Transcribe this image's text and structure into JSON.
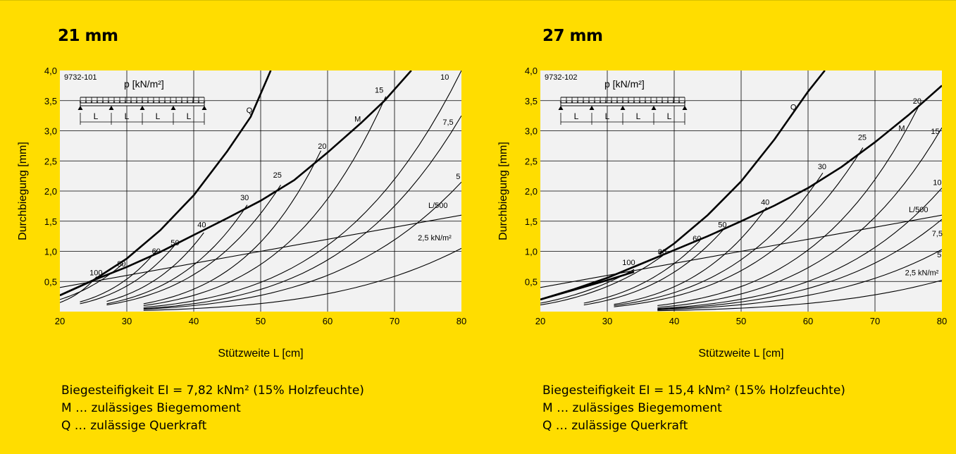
{
  "page": {
    "background": "#FFDD00"
  },
  "chart_data": [
    {
      "type": "line",
      "title": "21 mm",
      "chart_id": "9732-101",
      "xlabel": "Stützweite L [cm]",
      "ylabel": "Durchbiegung [mm]",
      "xlim": [
        20,
        80
      ],
      "ylim": [
        0,
        4.0
      ],
      "x_ticks": [
        "20",
        "30",
        "40",
        "50",
        "60",
        "70",
        "80"
      ],
      "y_ticks": [
        "0,5",
        "1,0",
        "1,5",
        "2,0",
        "2,5",
        "3,0",
        "3,5",
        "4,0"
      ],
      "grid": true,
      "load_label": "p [kN/m²]",
      "span_labels": [
        "L",
        "L",
        "L",
        "L"
      ],
      "EI": 7.82,
      "annotations": [
        {
          "text": "Q",
          "x": 48.3,
          "y": 3.3
        },
        {
          "text": "M",
          "x": 64.5,
          "y": 3.15
        },
        {
          "text": "L/500",
          "x": 76.5,
          "y": 1.72
        },
        {
          "text": "2,5 kN/m²",
          "x": 76,
          "y": 1.18
        },
        {
          "text": "10",
          "x": 77.5,
          "y": 3.85
        },
        {
          "text": "7,5",
          "x": 78,
          "y": 3.1
        },
        {
          "text": "5",
          "x": 79.5,
          "y": 2.2
        },
        {
          "text": "15",
          "x": 67.7,
          "y": 3.63
        },
        {
          "text": "20",
          "x": 59.2,
          "y": 2.7
        },
        {
          "text": "25",
          "x": 52.5,
          "y": 2.22
        },
        {
          "text": "30",
          "x": 47.6,
          "y": 1.85
        },
        {
          "text": "40",
          "x": 41.2,
          "y": 1.4
        },
        {
          "text": "50",
          "x": 37.2,
          "y": 1.1
        },
        {
          "text": "60",
          "x": 34.4,
          "y": 0.96
        },
        {
          "text": "80",
          "x": 29.2,
          "y": 0.75
        },
        {
          "text": "100",
          "x": 25.4,
          "y": 0.6
        }
      ],
      "Q": {
        "x": [
          20,
          25,
          30,
          35,
          40,
          45,
          48.5,
          51.5
        ],
        "y": [
          0.27,
          0.52,
          0.88,
          1.35,
          1.93,
          2.66,
          3.23,
          4.0
        ]
      },
      "M": {
        "x": [
          20,
          25,
          30,
          35,
          40,
          45,
          50,
          55,
          60,
          65,
          68.5,
          72.5
        ],
        "y": [
          0.27,
          0.52,
          0.74,
          0.99,
          1.27,
          1.55,
          1.84,
          2.18,
          2.64,
          3.13,
          3.5,
          4.0
        ]
      },
      "L500": {
        "x": [
          20,
          30,
          40,
          50,
          60,
          70,
          80
        ],
        "y": [
          0.4,
          0.6,
          0.8,
          1.0,
          1.2,
          1.4,
          1.6
        ]
      },
      "load_curves": [
        {
          "name": "100",
          "x": [
            20,
            25.5
          ],
          "y": [
            0.15,
            0.58
          ]
        },
        {
          "name": "80",
          "x": [
            20,
            29.5
          ],
          "y": [
            0.2,
            0.8
          ]
        },
        {
          "name": "60",
          "x": [
            23,
            34.5
          ],
          "y": [
            0.16,
            1.02
          ]
        },
        {
          "name": "50",
          "x": [
            23,
            37.3
          ],
          "y": [
            0.13,
            1.12
          ]
        },
        {
          "name": "40",
          "x": [
            27,
            41.5
          ],
          "y": [
            0.17,
            1.31
          ]
        },
        {
          "name": "30",
          "x": [
            27,
            48
          ],
          "y": [
            0.13,
            1.77
          ]
        },
        {
          "name": "25",
          "x": [
            27,
            53
          ],
          "y": [
            0.11,
            2.1
          ]
        },
        {
          "name": "20",
          "x": [
            32.5,
            59
          ],
          "y": [
            0.13,
            2.67
          ]
        },
        {
          "name": "15",
          "x": [
            32.5,
            68.7
          ],
          "y": [
            0.1,
            3.57
          ]
        },
        {
          "name": "10",
          "x": [
            32.5,
            80
          ],
          "y": [
            0.07,
            4.0
          ]
        },
        {
          "name": "7,5",
          "x": [
            32.5,
            80
          ],
          "y": [
            0.05,
            3.25
          ]
        },
        {
          "name": "5",
          "x": [
            32.5,
            80
          ],
          "y": [
            0.04,
            2.15
          ]
        },
        {
          "name": "2,5 kN/m²",
          "x": [
            32.5,
            80
          ],
          "y": [
            0.02,
            1.05
          ]
        }
      ]
    },
    {
      "type": "line",
      "title": "27 mm",
      "chart_id": "9732-102",
      "xlabel": "Stützweite L [cm]",
      "ylabel": "Durchbiegung [mm]",
      "xlim": [
        20,
        80
      ],
      "ylim": [
        0,
        4.0
      ],
      "x_ticks": [
        "20",
        "30",
        "40",
        "50",
        "60",
        "70",
        "80"
      ],
      "y_ticks": [
        "0,5",
        "1,0",
        "1,5",
        "2,0",
        "2,5",
        "3,0",
        "3,5",
        "4,0"
      ],
      "grid": true,
      "load_label": "p [kN/m²]",
      "span_labels": [
        "L",
        "L",
        "L",
        "L"
      ],
      "EI": 15.4,
      "annotations": [
        {
          "text": "Q",
          "x": 57.8,
          "y": 3.35
        },
        {
          "text": "M",
          "x": 74,
          "y": 3.0
        },
        {
          "text": "L/500",
          "x": 76.5,
          "y": 1.65
        },
        {
          "text": "2,5 kN/m²",
          "x": 77,
          "y": 0.6
        },
        {
          "text": "20",
          "x": 76.3,
          "y": 3.45
        },
        {
          "text": "15",
          "x": 79,
          "y": 2.95
        },
        {
          "text": "10",
          "x": 79.3,
          "y": 2.1
        },
        {
          "text": "7,5",
          "x": 79.3,
          "y": 1.25
        },
        {
          "text": "5",
          "x": 79.6,
          "y": 0.9
        },
        {
          "text": "25",
          "x": 68.1,
          "y": 2.85
        },
        {
          "text": "30",
          "x": 62.1,
          "y": 2.36
        },
        {
          "text": "40",
          "x": 53.6,
          "y": 1.77
        },
        {
          "text": "50",
          "x": 47.2,
          "y": 1.4
        },
        {
          "text": "60",
          "x": 43.4,
          "y": 1.17
        },
        {
          "text": "80",
          "x": 38.2,
          "y": 0.95
        },
        {
          "text": "100",
          "x": 33.2,
          "y": 0.77
        }
      ],
      "Q": {
        "x": [
          37.8,
          40,
          45,
          50,
          55,
          60,
          62.5
        ],
        "y": [
          0.96,
          1.13,
          1.6,
          2.16,
          2.86,
          3.65,
          4.0
        ]
      },
      "M": {
        "x": [
          20,
          25,
          30,
          35,
          40,
          45,
          50,
          55,
          60,
          65,
          70,
          75,
          80
        ],
        "y": [
          0.2,
          0.37,
          0.56,
          0.79,
          1.02,
          1.25,
          1.5,
          1.76,
          2.05,
          2.4,
          2.81,
          3.26,
          3.75
        ]
      },
      "Q_low": {
        "x": [
          20,
          25,
          30,
          34
        ],
        "y": [
          0.2,
          0.36,
          0.52,
          0.66
        ]
      },
      "L500": {
        "x": [
          20,
          30,
          40,
          50,
          60,
          70,
          80
        ],
        "y": [
          0.4,
          0.6,
          0.8,
          1.0,
          1.2,
          1.4,
          1.6
        ]
      },
      "load_curves": [
        {
          "name": "100",
          "x": [
            20,
            34
          ],
          "y": [
            0.14,
            0.7
          ]
        },
        {
          "name": "80",
          "x": [
            20,
            38.3
          ],
          "y": [
            0.11,
            0.93
          ]
        },
        {
          "name": "60",
          "x": [
            26.5,
            43.8
          ],
          "y": [
            0.14,
            1.17
          ]
        },
        {
          "name": "50",
          "x": [
            26.5,
            47.5
          ],
          "y": [
            0.11,
            1.38
          ]
        },
        {
          "name": "40",
          "x": [
            31,
            53.8
          ],
          "y": [
            0.12,
            1.73
          ]
        },
        {
          "name": "30",
          "x": [
            31,
            62.2
          ],
          "y": [
            0.1,
            2.3
          ]
        },
        {
          "name": "25",
          "x": [
            31,
            68.2
          ],
          "y": [
            0.08,
            2.72
          ]
        },
        {
          "name": "20",
          "x": [
            37.5,
            76.5
          ],
          "y": [
            0.1,
            3.4
          ]
        },
        {
          "name": "15",
          "x": [
            37.5,
            80
          ],
          "y": [
            0.07,
            3.05
          ]
        },
        {
          "name": "10",
          "x": [
            37.5,
            80
          ],
          "y": [
            0.05,
            2.05
          ]
        },
        {
          "name": "7,5",
          "x": [
            37.5,
            80
          ],
          "y": [
            0.04,
            1.53
          ]
        },
        {
          "name": "5",
          "x": [
            37.5,
            80
          ],
          "y": [
            0.03,
            1.03
          ]
        },
        {
          "name": "2,5 kN/m²",
          "x": [
            37.5,
            80
          ],
          "y": [
            0.015,
            0.52
          ]
        }
      ]
    }
  ],
  "panels": [
    {
      "heading": "21 mm",
      "notes": {
        "stiffness": "Biegesteifigkeit EI = 7,82 kNm² (15% Holzfeuchte)",
        "M": "M … zulässiges Biegemoment",
        "Q": "Q … zulässige Querkraft"
      }
    },
    {
      "heading": "27 mm",
      "notes": {
        "stiffness": "Biegesteifigkeit EI = 15,4 kNm² (15% Holzfeuchte)",
        "M": "M … zulässiges Biegemoment",
        "Q": "Q … zulässige Querkraft"
      }
    }
  ]
}
